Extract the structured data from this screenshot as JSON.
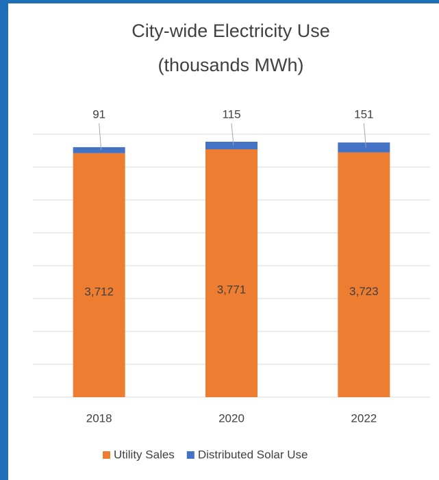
{
  "chart_data": {
    "type": "stacked-bar",
    "title": "City-wide Electricity Use\n(thousands MWh)",
    "categories": [
      "2018",
      "2020",
      "2022"
    ],
    "series": [
      {
        "name": "Utility Sales",
        "color": "#ed7d31",
        "values": [
          3712,
          3771,
          3723
        ],
        "value_labels": [
          "3,712",
          "3,771",
          "3,723"
        ]
      },
      {
        "name": "Distributed Solar Use",
        "color": "#4472c4",
        "values": [
          91,
          115,
          151
        ]
      }
    ],
    "ylim": [
      0,
      4000
    ],
    "yticks": [
      0,
      500,
      1000,
      1500,
      2000,
      2500,
      3000,
      3500,
      4000
    ],
    "grid": true,
    "legend": "bottom"
  }
}
